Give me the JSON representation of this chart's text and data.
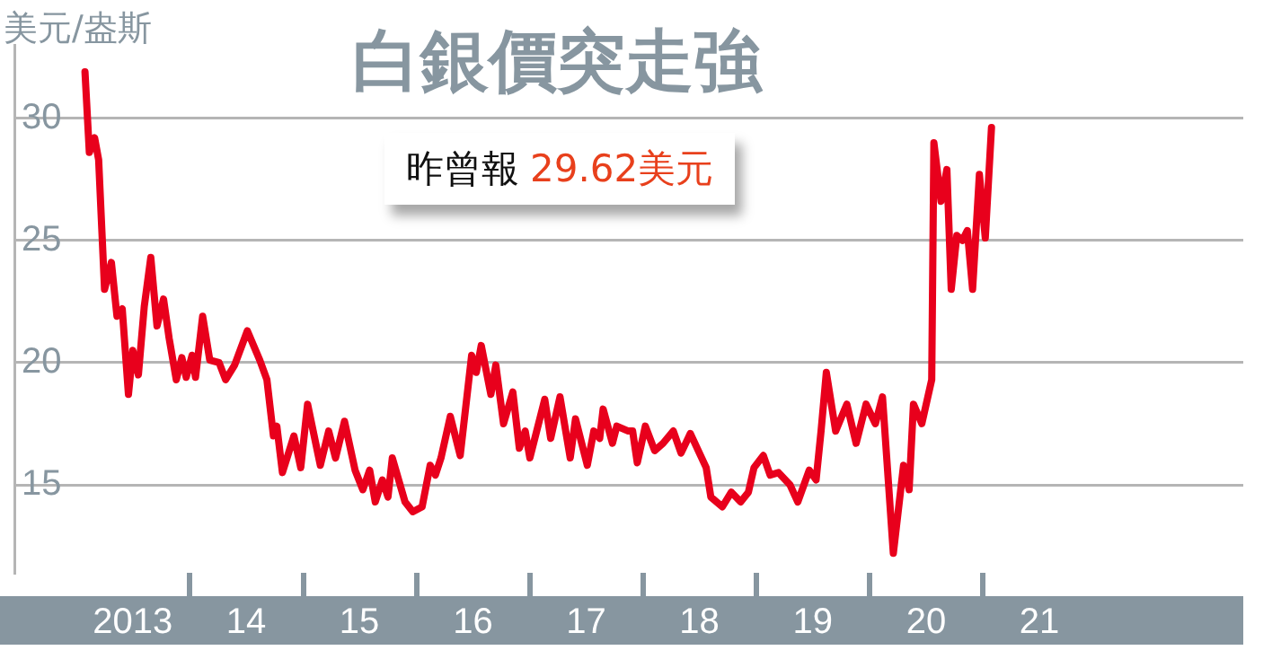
{
  "chart_data": {
    "type": "line",
    "title": "白銀價突走強",
    "ylabel": "美元/盎斯",
    "annotations": [
      "昨曾報",
      "29.62美元"
    ],
    "series": [
      {
        "color": "#e8001c",
        "x": [
          "2013-01-28",
          "2013-02-11",
          "2013-02-28",
          "2013-03-13",
          "2013-04-01",
          "2013-04-23",
          "2013-05-11",
          "2013-05-28",
          "2013-06-17",
          "2013-07-01",
          "2013-07-19",
          "2013-08-07",
          "2013-08-28",
          "2013-09-17",
          "2013-10-08",
          "2013-10-26",
          "2013-11-18",
          "2013-12-06",
          "2013-12-20",
          "2014-01-08",
          "2014-01-19",
          "2014-02-11",
          "2014-03-06",
          "2014-04-05",
          "2014-04-26",
          "2014-05-25",
          "2014-07-05",
          "2014-08-14",
          "2014-09-06",
          "2014-09-27",
          "2014-10-08",
          "2014-10-26",
          "2014-12-02",
          "2014-12-24",
          "2015-01-15",
          "2015-02-25",
          "2015-03-24",
          "2015-04-15",
          "2015-05-14",
          "2015-06-17",
          "2015-07-12",
          "2015-08-03",
          "2015-08-21",
          "2015-09-13",
          "2015-10-01",
          "2015-10-15",
          "2015-11-25",
          "2015-12-20",
          "2016-01-19",
          "2016-02-14",
          "2016-03-02",
          "2016-03-20",
          "2016-04-19",
          "2016-05-21",
          "2016-06-27",
          "2016-07-12",
          "2016-07-28",
          "2016-08-28",
          "2016-09-13",
          "2016-10-08",
          "2016-11-07",
          "2016-11-28",
          "2016-12-17",
          "2017-01-01",
          "2017-02-18",
          "2017-03-09",
          "2017-04-08",
          "2017-05-11",
          "2017-05-28",
          "2017-07-05",
          "2017-07-26",
          "2017-08-14",
          "2017-08-25",
          "2017-09-24",
          "2017-10-08",
          "2017-11-14",
          "2017-11-28",
          "2017-12-13",
          "2018-01-08",
          "2018-02-07",
          "2018-03-06",
          "2018-04-08",
          "2018-05-03",
          "2018-06-02",
          "2018-07-23",
          "2018-08-07",
          "2018-09-13",
          "2018-10-12",
          "2018-11-11",
          "2018-12-06",
          "2018-12-24",
          "2019-01-23",
          "2019-02-14",
          "2019-03-13",
          "2019-04-19",
          "2019-05-14",
          "2019-06-20",
          "2019-07-12",
          "2019-07-28",
          "2019-08-14",
          "2019-09-13",
          "2019-10-19",
          "2019-11-18",
          "2019-12-20",
          "2020-01-19",
          "2020-02-11",
          "2020-03-17",
          "2020-04-19",
          "2020-05-07",
          "2020-05-21",
          "2020-06-17",
          "2020-07-19",
          "2020-07-26",
          "2020-08-18",
          "2020-09-06",
          "2020-09-20",
          "2020-10-08",
          "2020-10-26",
          "2020-11-11",
          "2020-11-28",
          "2020-12-20",
          "2021-01-08",
          "2021-01-28"
        ],
        "values": [
          31.9,
          28.6,
          29.2,
          28.3,
          23.0,
          24.1,
          21.9,
          22.2,
          18.7,
          20.5,
          19.5,
          22.3,
          24.3,
          21.5,
          22.6,
          21.0,
          19.3,
          20.2,
          19.4,
          20.3,
          19.4,
          21.9,
          20.1,
          20.0,
          19.3,
          19.9,
          21.3,
          20.1,
          19.3,
          17.0,
          17.4,
          15.5,
          17.0,
          15.7,
          18.3,
          15.8,
          17.2,
          16.1,
          17.6,
          15.6,
          14.8,
          15.6,
          14.3,
          15.2,
          14.5,
          16.1,
          14.3,
          13.9,
          14.1,
          15.8,
          15.4,
          16.1,
          17.8,
          16.2,
          20.3,
          19.6,
          20.7,
          18.7,
          19.9,
          17.5,
          18.8,
          16.5,
          17.2,
          16.1,
          18.5,
          16.9,
          18.6,
          16.1,
          17.7,
          15.8,
          17.2,
          16.9,
          18.1,
          16.7,
          17.4,
          17.2,
          17.2,
          15.9,
          17.4,
          16.4,
          16.7,
          17.2,
          16.3,
          17.1,
          15.7,
          14.5,
          14.1,
          14.7,
          14.3,
          14.7,
          15.7,
          16.2,
          15.4,
          15.5,
          15.0,
          14.3,
          15.6,
          15.2,
          17.2,
          19.6,
          17.2,
          18.3,
          16.7,
          18.3,
          17.5,
          18.6,
          12.2,
          15.8,
          14.8,
          18.3,
          17.5,
          19.3,
          29.0,
          26.6,
          27.9,
          23.0,
          25.2,
          25.0,
          25.4,
          23.0,
          27.7,
          25.1,
          29.62
        ]
      }
    ],
    "ylim": [
      11.4,
      33
    ],
    "yticks": [
      15,
      20,
      25,
      30
    ],
    "xlim": [
      "2012-06-14",
      "2023-04-19"
    ],
    "xticks": [
      {
        "value": "2013-07-01",
        "label": "2013"
      },
      {
        "value": "2014",
        "label": null
      },
      {
        "value": "2014-07-01",
        "label": "14"
      },
      {
        "value": "2015",
        "label": null
      },
      {
        "value": "2015-07-01",
        "label": "15"
      },
      {
        "value": "2016",
        "label": null
      },
      {
        "value": "2016-07-01",
        "label": "16"
      },
      {
        "value": "2017",
        "label": null
      },
      {
        "value": "2017-07-01",
        "label": "17"
      },
      {
        "value": "2018",
        "label": null
      },
      {
        "value": "2018-07-01",
        "label": "18"
      },
      {
        "value": "2019",
        "label": null
      },
      {
        "value": "2019-07-01",
        "label": "19"
      },
      {
        "value": "2020",
        "label": null
      },
      {
        "value": "2020-07-01",
        "label": "20"
      },
      {
        "value": "2021",
        "label": null
      },
      {
        "value": "2021-07-01",
        "label": "21"
      }
    ],
    "grid": "y",
    "legend": false,
    "marker": "none",
    "line_style": "solid"
  }
}
